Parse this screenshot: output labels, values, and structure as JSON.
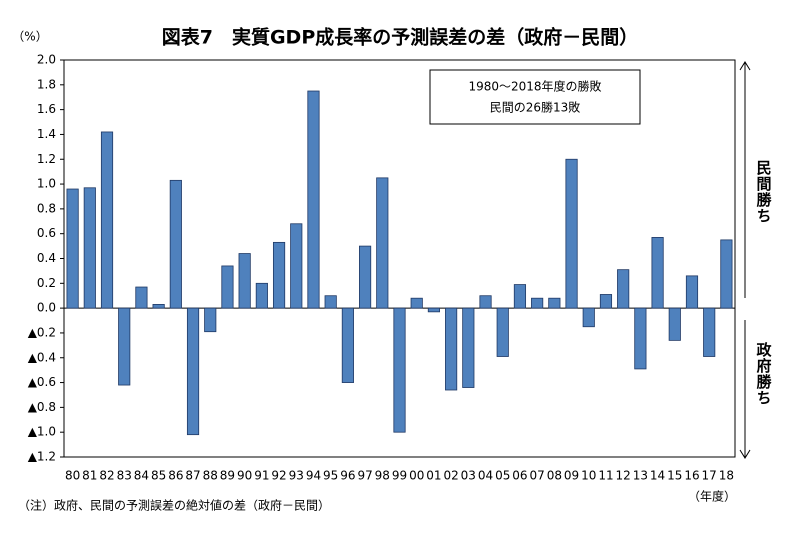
{
  "chart_data": {
    "type": "bar",
    "title": "図表7　実質GDP成長率の予測誤差の差（政府－民間）",
    "y_unit": "（%）",
    "x_unit": "（年度）",
    "note": "（注）政府、民間の予測誤差の絶対値の差（政府－民間）",
    "annotation": [
      "1980～2018年度の勝敗",
      "民間の26勝13敗"
    ],
    "side_labels": [
      "民間勝ち",
      "政府勝ち"
    ],
    "color": "#4f81bd",
    "categories": [
      "80",
      "81",
      "82",
      "83",
      "84",
      "85",
      "86",
      "87",
      "88",
      "89",
      "90",
      "91",
      "92",
      "93",
      "94",
      "95",
      "96",
      "97",
      "98",
      "99",
      "00",
      "01",
      "02",
      "03",
      "04",
      "05",
      "06",
      "07",
      "08",
      "09",
      "10",
      "11",
      "12",
      "13",
      "14",
      "15",
      "16",
      "17",
      "18"
    ],
    "values": [
      0.96,
      0.97,
      1.42,
      -0.62,
      0.17,
      0.03,
      1.03,
      -1.02,
      -0.19,
      0.34,
      0.44,
      0.2,
      0.53,
      0.68,
      1.75,
      0.1,
      -0.6,
      0.5,
      1.05,
      -1.0,
      0.08,
      -0.03,
      -0.66,
      -0.64,
      0.1,
      -0.39,
      0.19,
      0.08,
      0.08,
      1.2,
      -0.15,
      0.11,
      0.31,
      -0.49,
      0.57,
      -0.26,
      0.26,
      -0.39,
      0.55
    ],
    "ylim": [
      -1.2,
      2.0
    ],
    "yticks": [
      {
        "value": 2,
        "label": "2.0"
      },
      1.8,
      1.6,
      1.4,
      1.2,
      {
        "value": 1,
        "label": "1.0"
      },
      0.8,
      0.6,
      0.4,
      0.2,
      {
        "value": 0,
        "label": "0.0"
      },
      {
        "value": -0.2,
        "label": "▲0.2"
      },
      {
        "value": -0.4,
        "label": "▲0.4"
      },
      {
        "value": -0.6,
        "label": "▲0.6"
      },
      {
        "value": -0.8,
        "label": "▲0.8"
      },
      {
        "value": -1,
        "label": "▲1.0"
      },
      {
        "value": -1.2,
        "label": "▲1.2"
      }
    ]
  }
}
